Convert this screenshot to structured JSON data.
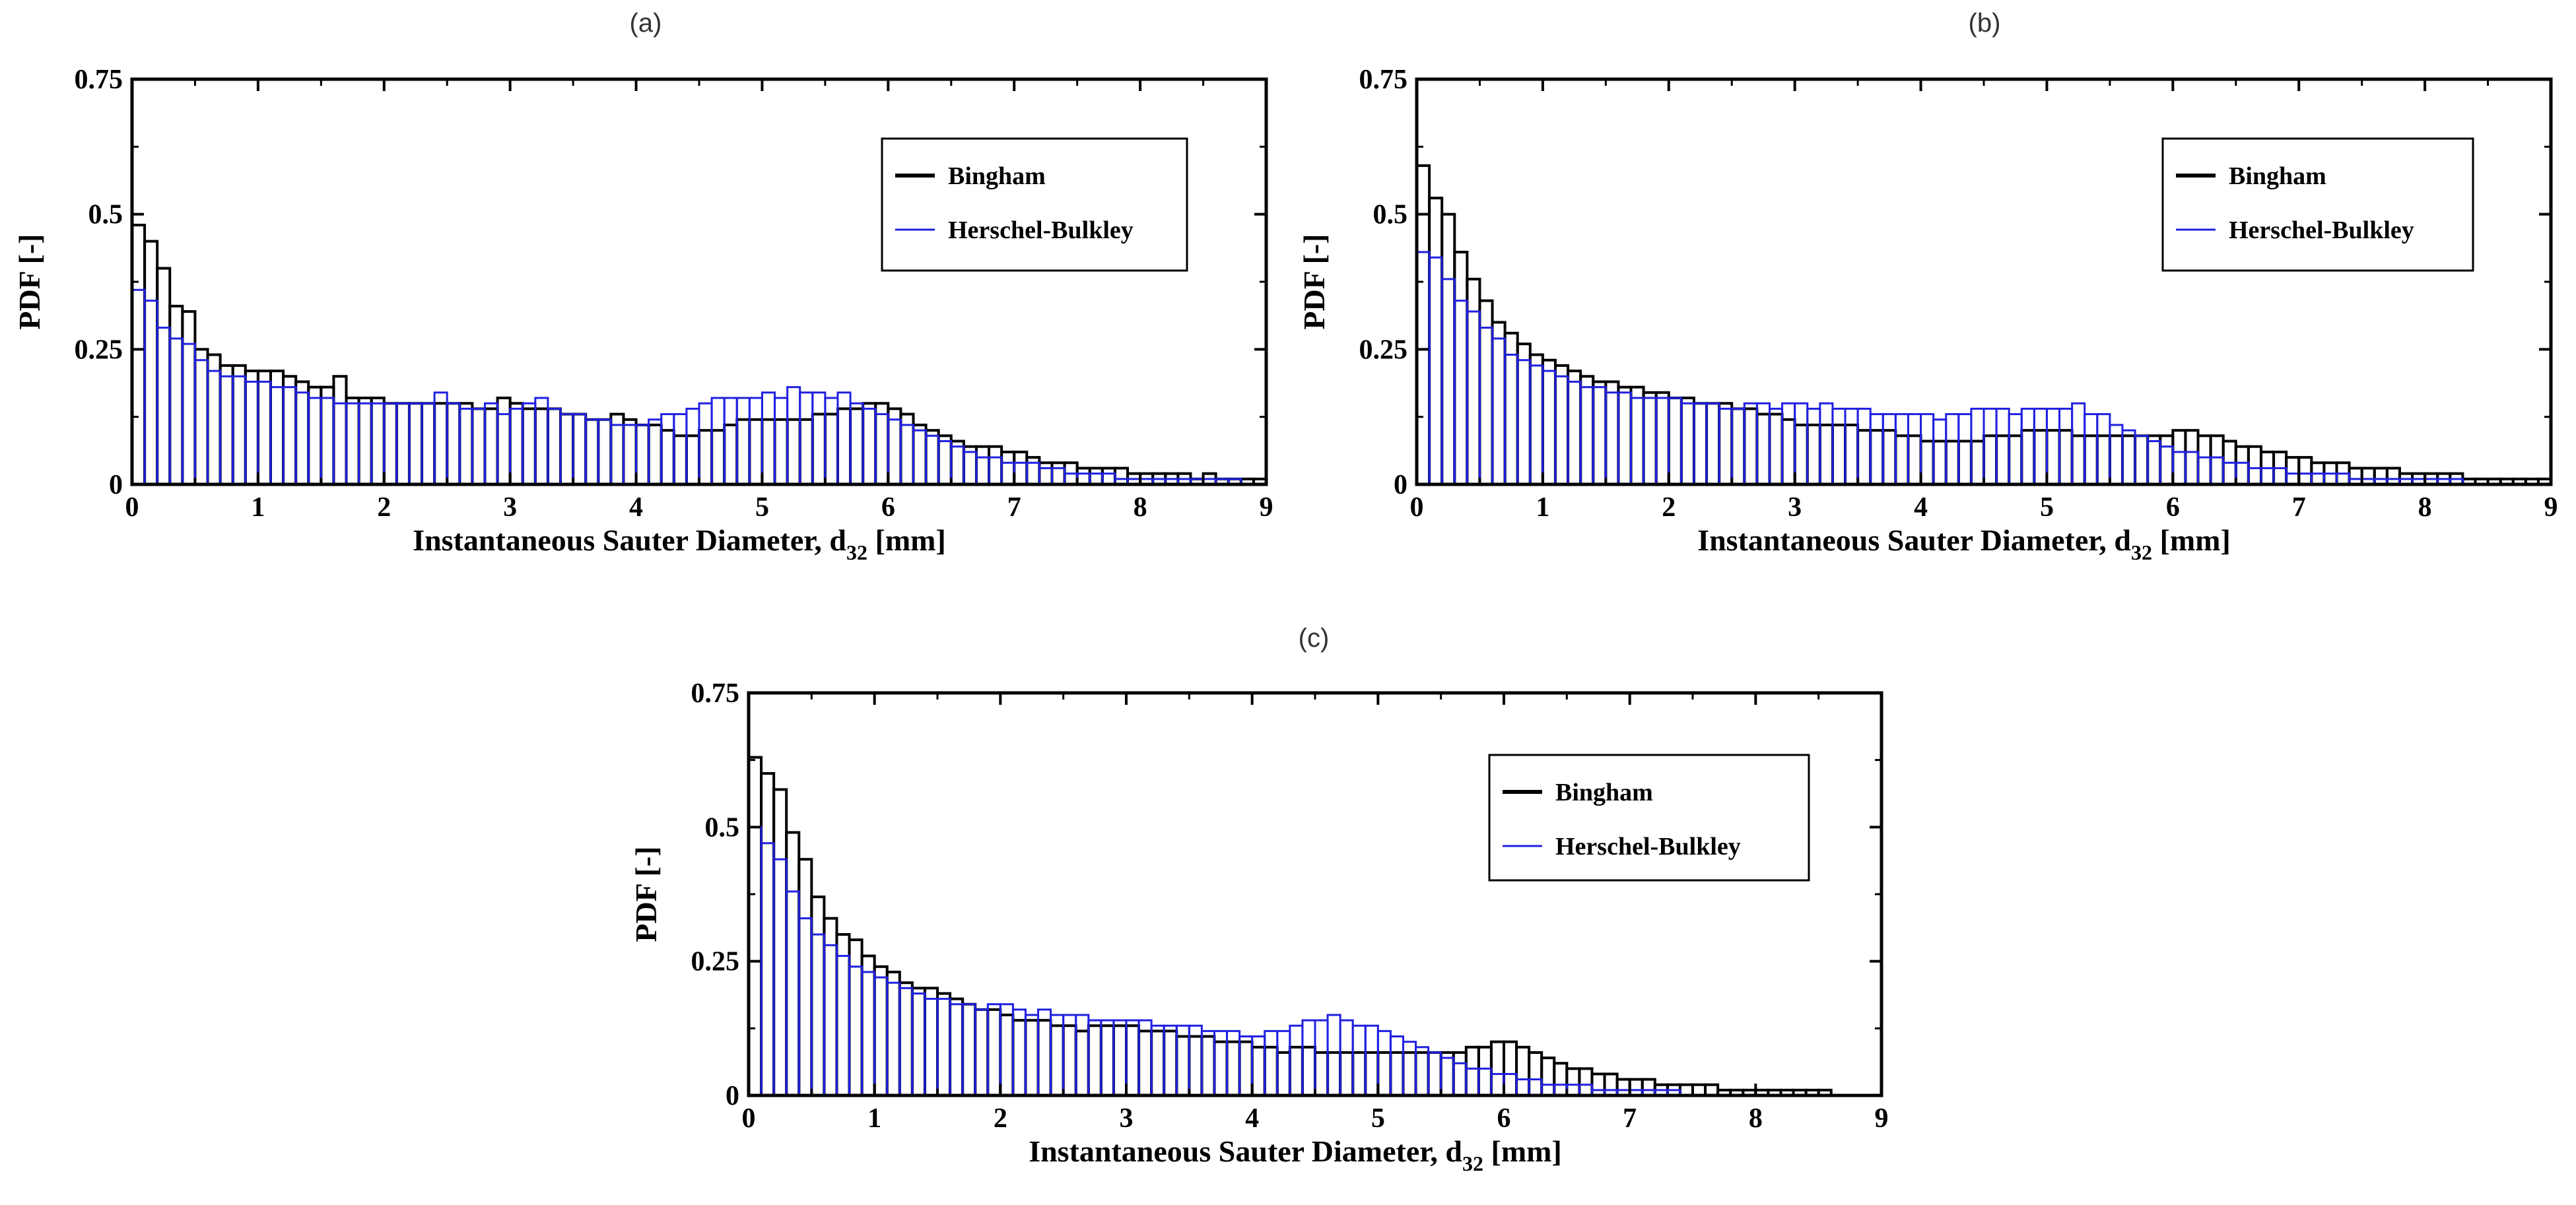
{
  "chart_data": [
    {
      "panel_label": "(a)",
      "type": "bar",
      "xlabel": "Instantaneous Sauter Diameter, d",
      "xlabel_sub": "32",
      "xlabel_suffix": " [mm]",
      "ylabel": "PDF [-]",
      "xlim": [
        0,
        9
      ],
      "ylim": [
        0,
        0.75
      ],
      "xticks": [
        "0",
        "1",
        "2",
        "3",
        "4",
        "5",
        "6",
        "7",
        "8",
        "9"
      ],
      "yticks": [
        "0",
        "0.25",
        "0.5",
        "0.75"
      ],
      "bin_width": 0.1,
      "legend": "top-right",
      "series": [
        {
          "name": "Bingham",
          "color": "#000000",
          "values": [
            0.48,
            0.45,
            0.4,
            0.33,
            0.32,
            0.25,
            0.24,
            0.22,
            0.22,
            0.21,
            0.21,
            0.21,
            0.2,
            0.19,
            0.18,
            0.18,
            0.2,
            0.16,
            0.16,
            0.16,
            0.15,
            0.15,
            0.15,
            0.15,
            0.15,
            0.15,
            0.15,
            0.14,
            0.14,
            0.16,
            0.15,
            0.14,
            0.14,
            0.14,
            0.13,
            0.13,
            0.12,
            0.12,
            0.13,
            0.12,
            0.11,
            0.11,
            0.1,
            0.09,
            0.09,
            0.1,
            0.1,
            0.11,
            0.12,
            0.12,
            0.12,
            0.12,
            0.12,
            0.12,
            0.13,
            0.13,
            0.14,
            0.14,
            0.15,
            0.15,
            0.14,
            0.13,
            0.11,
            0.1,
            0.09,
            0.08,
            0.07,
            0.07,
            0.07,
            0.06,
            0.06,
            0.05,
            0.04,
            0.04,
            0.04,
            0.03,
            0.03,
            0.03,
            0.03,
            0.02,
            0.02,
            0.02,
            0.02,
            0.02,
            0.01,
            0.02,
            0.01,
            0.01,
            0.01,
            0.01
          ]
        },
        {
          "name": "Herschel-Bulkley",
          "color": "#2020e0",
          "values": [
            0.36,
            0.34,
            0.29,
            0.27,
            0.26,
            0.23,
            0.21,
            0.2,
            0.2,
            0.19,
            0.19,
            0.18,
            0.18,
            0.17,
            0.16,
            0.16,
            0.15,
            0.15,
            0.15,
            0.15,
            0.15,
            0.15,
            0.15,
            0.15,
            0.17,
            0.15,
            0.14,
            0.14,
            0.15,
            0.13,
            0.14,
            0.15,
            0.16,
            0.14,
            0.13,
            0.13,
            0.12,
            0.12,
            0.11,
            0.11,
            0.11,
            0.12,
            0.13,
            0.13,
            0.14,
            0.15,
            0.16,
            0.16,
            0.16,
            0.16,
            0.17,
            0.16,
            0.18,
            0.17,
            0.17,
            0.16,
            0.17,
            0.15,
            0.14,
            0.13,
            0.12,
            0.11,
            0.1,
            0.09,
            0.08,
            0.07,
            0.06,
            0.05,
            0.05,
            0.04,
            0.04,
            0.04,
            0.03,
            0.03,
            0.02,
            0.02,
            0.02,
            0.02,
            0.01,
            0.01,
            0.01,
            0.01,
            0.01,
            0.01,
            0.01,
            0.01,
            0.01,
            0.01,
            0.0,
            0.0
          ]
        }
      ]
    },
    {
      "panel_label": "(b)",
      "type": "bar",
      "xlabel": "Instantaneous Sauter Diameter, d",
      "xlabel_sub": "32",
      "xlabel_suffix": " [mm]",
      "ylabel": "PDF [-]",
      "xlim": [
        0,
        9
      ],
      "ylim": [
        0,
        0.75
      ],
      "xticks": [
        "0",
        "1",
        "2",
        "3",
        "4",
        "5",
        "6",
        "7",
        "8",
        "9"
      ],
      "yticks": [
        "0",
        "0.25",
        "0.5",
        "0.75"
      ],
      "bin_width": 0.1,
      "legend": "top-right",
      "series": [
        {
          "name": "Bingham",
          "color": "#000000",
          "values": [
            0.59,
            0.53,
            0.5,
            0.43,
            0.38,
            0.34,
            0.3,
            0.28,
            0.26,
            0.24,
            0.23,
            0.22,
            0.21,
            0.2,
            0.19,
            0.19,
            0.18,
            0.18,
            0.17,
            0.17,
            0.16,
            0.16,
            0.15,
            0.15,
            0.15,
            0.14,
            0.14,
            0.13,
            0.13,
            0.12,
            0.11,
            0.11,
            0.11,
            0.11,
            0.11,
            0.1,
            0.1,
            0.1,
            0.09,
            0.09,
            0.08,
            0.08,
            0.08,
            0.08,
            0.08,
            0.09,
            0.09,
            0.09,
            0.1,
            0.1,
            0.1,
            0.1,
            0.09,
            0.09,
            0.09,
            0.09,
            0.09,
            0.09,
            0.09,
            0.09,
            0.1,
            0.1,
            0.09,
            0.09,
            0.08,
            0.07,
            0.07,
            0.06,
            0.06,
            0.05,
            0.05,
            0.04,
            0.04,
            0.04,
            0.03,
            0.03,
            0.03,
            0.03,
            0.02,
            0.02,
            0.02,
            0.02,
            0.02,
            0.01,
            0.01,
            0.01,
            0.01,
            0.01,
            0.01,
            0.01
          ]
        },
        {
          "name": "Herschel-Bulkley",
          "color": "#2020e0",
          "values": [
            0.43,
            0.42,
            0.38,
            0.34,
            0.32,
            0.29,
            0.27,
            0.24,
            0.23,
            0.22,
            0.21,
            0.2,
            0.19,
            0.18,
            0.18,
            0.17,
            0.17,
            0.16,
            0.16,
            0.16,
            0.16,
            0.15,
            0.15,
            0.15,
            0.14,
            0.14,
            0.15,
            0.15,
            0.14,
            0.15,
            0.15,
            0.14,
            0.15,
            0.14,
            0.14,
            0.14,
            0.13,
            0.13,
            0.13,
            0.13,
            0.13,
            0.12,
            0.13,
            0.13,
            0.14,
            0.14,
            0.14,
            0.13,
            0.14,
            0.14,
            0.14,
            0.14,
            0.15,
            0.13,
            0.13,
            0.11,
            0.1,
            0.09,
            0.08,
            0.07,
            0.06,
            0.06,
            0.05,
            0.05,
            0.04,
            0.04,
            0.03,
            0.03,
            0.03,
            0.02,
            0.02,
            0.02,
            0.02,
            0.02,
            0.01,
            0.01,
            0.01,
            0.01,
            0.01,
            0.01,
            0.01,
            0.01,
            0.01,
            0.0,
            0.0,
            0.0,
            0.0,
            0.0,
            0.0,
            0.0
          ]
        }
      ]
    },
    {
      "panel_label": "(c)",
      "type": "bar",
      "xlabel": "Instantaneous Sauter Diameter, d",
      "xlabel_sub": "32",
      "xlabel_suffix": " [mm]",
      "ylabel": "PDF [-]",
      "xlim": [
        0,
        9
      ],
      "ylim": [
        0,
        0.75
      ],
      "xticks": [
        "0",
        "1",
        "2",
        "3",
        "4",
        "5",
        "6",
        "7",
        "8",
        "9"
      ],
      "yticks": [
        "0",
        "0.25",
        "0.5",
        "0.75"
      ],
      "bin_width": 0.1,
      "legend": "top-right",
      "series": [
        {
          "name": "Bingham",
          "color": "#000000",
          "values": [
            0.63,
            0.6,
            0.57,
            0.49,
            0.44,
            0.37,
            0.33,
            0.3,
            0.29,
            0.26,
            0.24,
            0.23,
            0.21,
            0.2,
            0.2,
            0.19,
            0.18,
            0.17,
            0.16,
            0.16,
            0.15,
            0.14,
            0.14,
            0.14,
            0.13,
            0.13,
            0.12,
            0.13,
            0.13,
            0.13,
            0.13,
            0.12,
            0.12,
            0.12,
            0.11,
            0.11,
            0.11,
            0.1,
            0.1,
            0.1,
            0.09,
            0.09,
            0.08,
            0.09,
            0.09,
            0.08,
            0.08,
            0.08,
            0.08,
            0.08,
            0.08,
            0.08,
            0.08,
            0.08,
            0.08,
            0.08,
            0.08,
            0.09,
            0.09,
            0.1,
            0.1,
            0.09,
            0.08,
            0.07,
            0.06,
            0.05,
            0.05,
            0.04,
            0.04,
            0.03,
            0.03,
            0.03,
            0.02,
            0.02,
            0.02,
            0.02,
            0.02,
            0.01,
            0.01,
            0.01,
            0.01,
            0.01,
            0.01,
            0.01,
            0.01,
            0.01,
            0.0,
            0.0,
            0.0,
            0.0
          ]
        },
        {
          "name": "Herschel-Bulkley",
          "color": "#2020e0",
          "values": [
            0.5,
            0.47,
            0.44,
            0.38,
            0.33,
            0.3,
            0.28,
            0.26,
            0.24,
            0.23,
            0.22,
            0.21,
            0.2,
            0.19,
            0.18,
            0.18,
            0.17,
            0.17,
            0.16,
            0.17,
            0.17,
            0.16,
            0.15,
            0.16,
            0.15,
            0.15,
            0.15,
            0.14,
            0.14,
            0.14,
            0.14,
            0.14,
            0.13,
            0.13,
            0.13,
            0.13,
            0.12,
            0.12,
            0.12,
            0.11,
            0.11,
            0.12,
            0.12,
            0.13,
            0.14,
            0.14,
            0.15,
            0.14,
            0.13,
            0.13,
            0.12,
            0.11,
            0.1,
            0.09,
            0.08,
            0.07,
            0.06,
            0.05,
            0.05,
            0.04,
            0.04,
            0.03,
            0.03,
            0.02,
            0.02,
            0.02,
            0.02,
            0.01,
            0.01,
            0.01,
            0.01,
            0.01,
            0.01,
            0.01,
            0.0,
            0.0,
            0.0,
            0.0,
            0.0,
            0.0,
            0.0,
            0.0,
            0.0,
            0.0,
            0.0,
            0.0,
            0.0,
            0.0,
            0.0,
            0.0
          ]
        }
      ]
    }
  ]
}
